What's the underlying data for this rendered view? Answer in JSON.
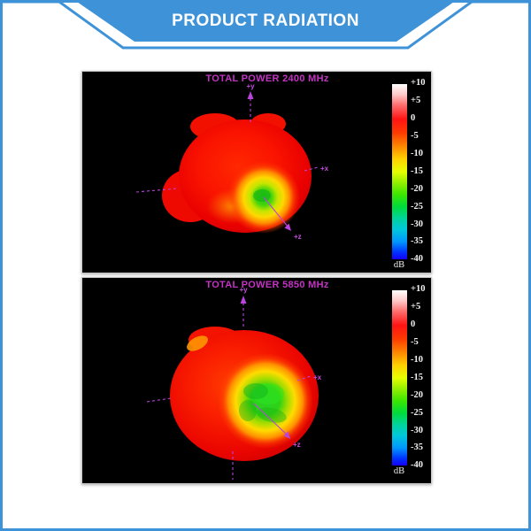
{
  "header": {
    "title": "PRODUCT RADIATION"
  },
  "colors": {
    "banner_blue": "#3E93D8",
    "plot_title_magenta": "#C433C4",
    "axis_magenta": "#BB44DD",
    "panel_background": "#000000"
  },
  "plots": [
    {
      "title": "TOTAL POWER 2400 MHz",
      "axes": {
        "up": "+y",
        "right": "+x",
        "lobe": "+z"
      },
      "colorbar": {
        "unit": "dB",
        "ticks": [
          "+10",
          "+5",
          "0",
          "-5",
          "-10",
          "-15",
          "-20",
          "-25",
          "-30",
          "-35",
          "-40"
        ]
      }
    },
    {
      "title": "TOTAL POWER 5850 MHz",
      "axes": {
        "up": "+y",
        "right": "+x",
        "lobe": "+z"
      },
      "colorbar": {
        "unit": "dB",
        "ticks": [
          "+10",
          "+5",
          "0",
          "-5",
          "-10",
          "-15",
          "-20",
          "-25",
          "-30",
          "-35",
          "-40"
        ]
      }
    }
  ],
  "chart_data": [
    {
      "type": "heatmap",
      "chart_kind": "3D far-field radiation pattern",
      "title": "TOTAL POWER 2400 MHz",
      "frequency_mhz": 2400,
      "axes_shown": [
        "+y",
        "+x",
        "+z"
      ],
      "colorbar_label": "dB",
      "colorbar_range": [
        -40,
        10
      ],
      "colorbar_ticks": [
        10,
        5,
        0,
        -5,
        -10,
        -15,
        -20,
        -25,
        -30,
        -35,
        -40
      ],
      "legend_position": "right",
      "pattern_description": "Nearly omnidirectional red lobe (~0 to +5 dB) with a small localized null (~-15 to -20 dB, green) in the +z direction"
    },
    {
      "type": "heatmap",
      "chart_kind": "3D far-field radiation pattern",
      "title": "TOTAL POWER 5850 MHz",
      "frequency_mhz": 5850,
      "axes_shown": [
        "+y",
        "+x",
        "+z"
      ],
      "colorbar_label": "dB",
      "colorbar_range": [
        -40,
        10
      ],
      "colorbar_ticks": [
        10,
        5,
        0,
        -5,
        -10,
        -15,
        -20,
        -25,
        -30,
        -35,
        -40
      ],
      "legend_position": "right",
      "pattern_description": "Red/orange lobe (~0 dB) with a broad deep null (~-15 to -25 dB, green) centered on the +z axis"
    }
  ]
}
